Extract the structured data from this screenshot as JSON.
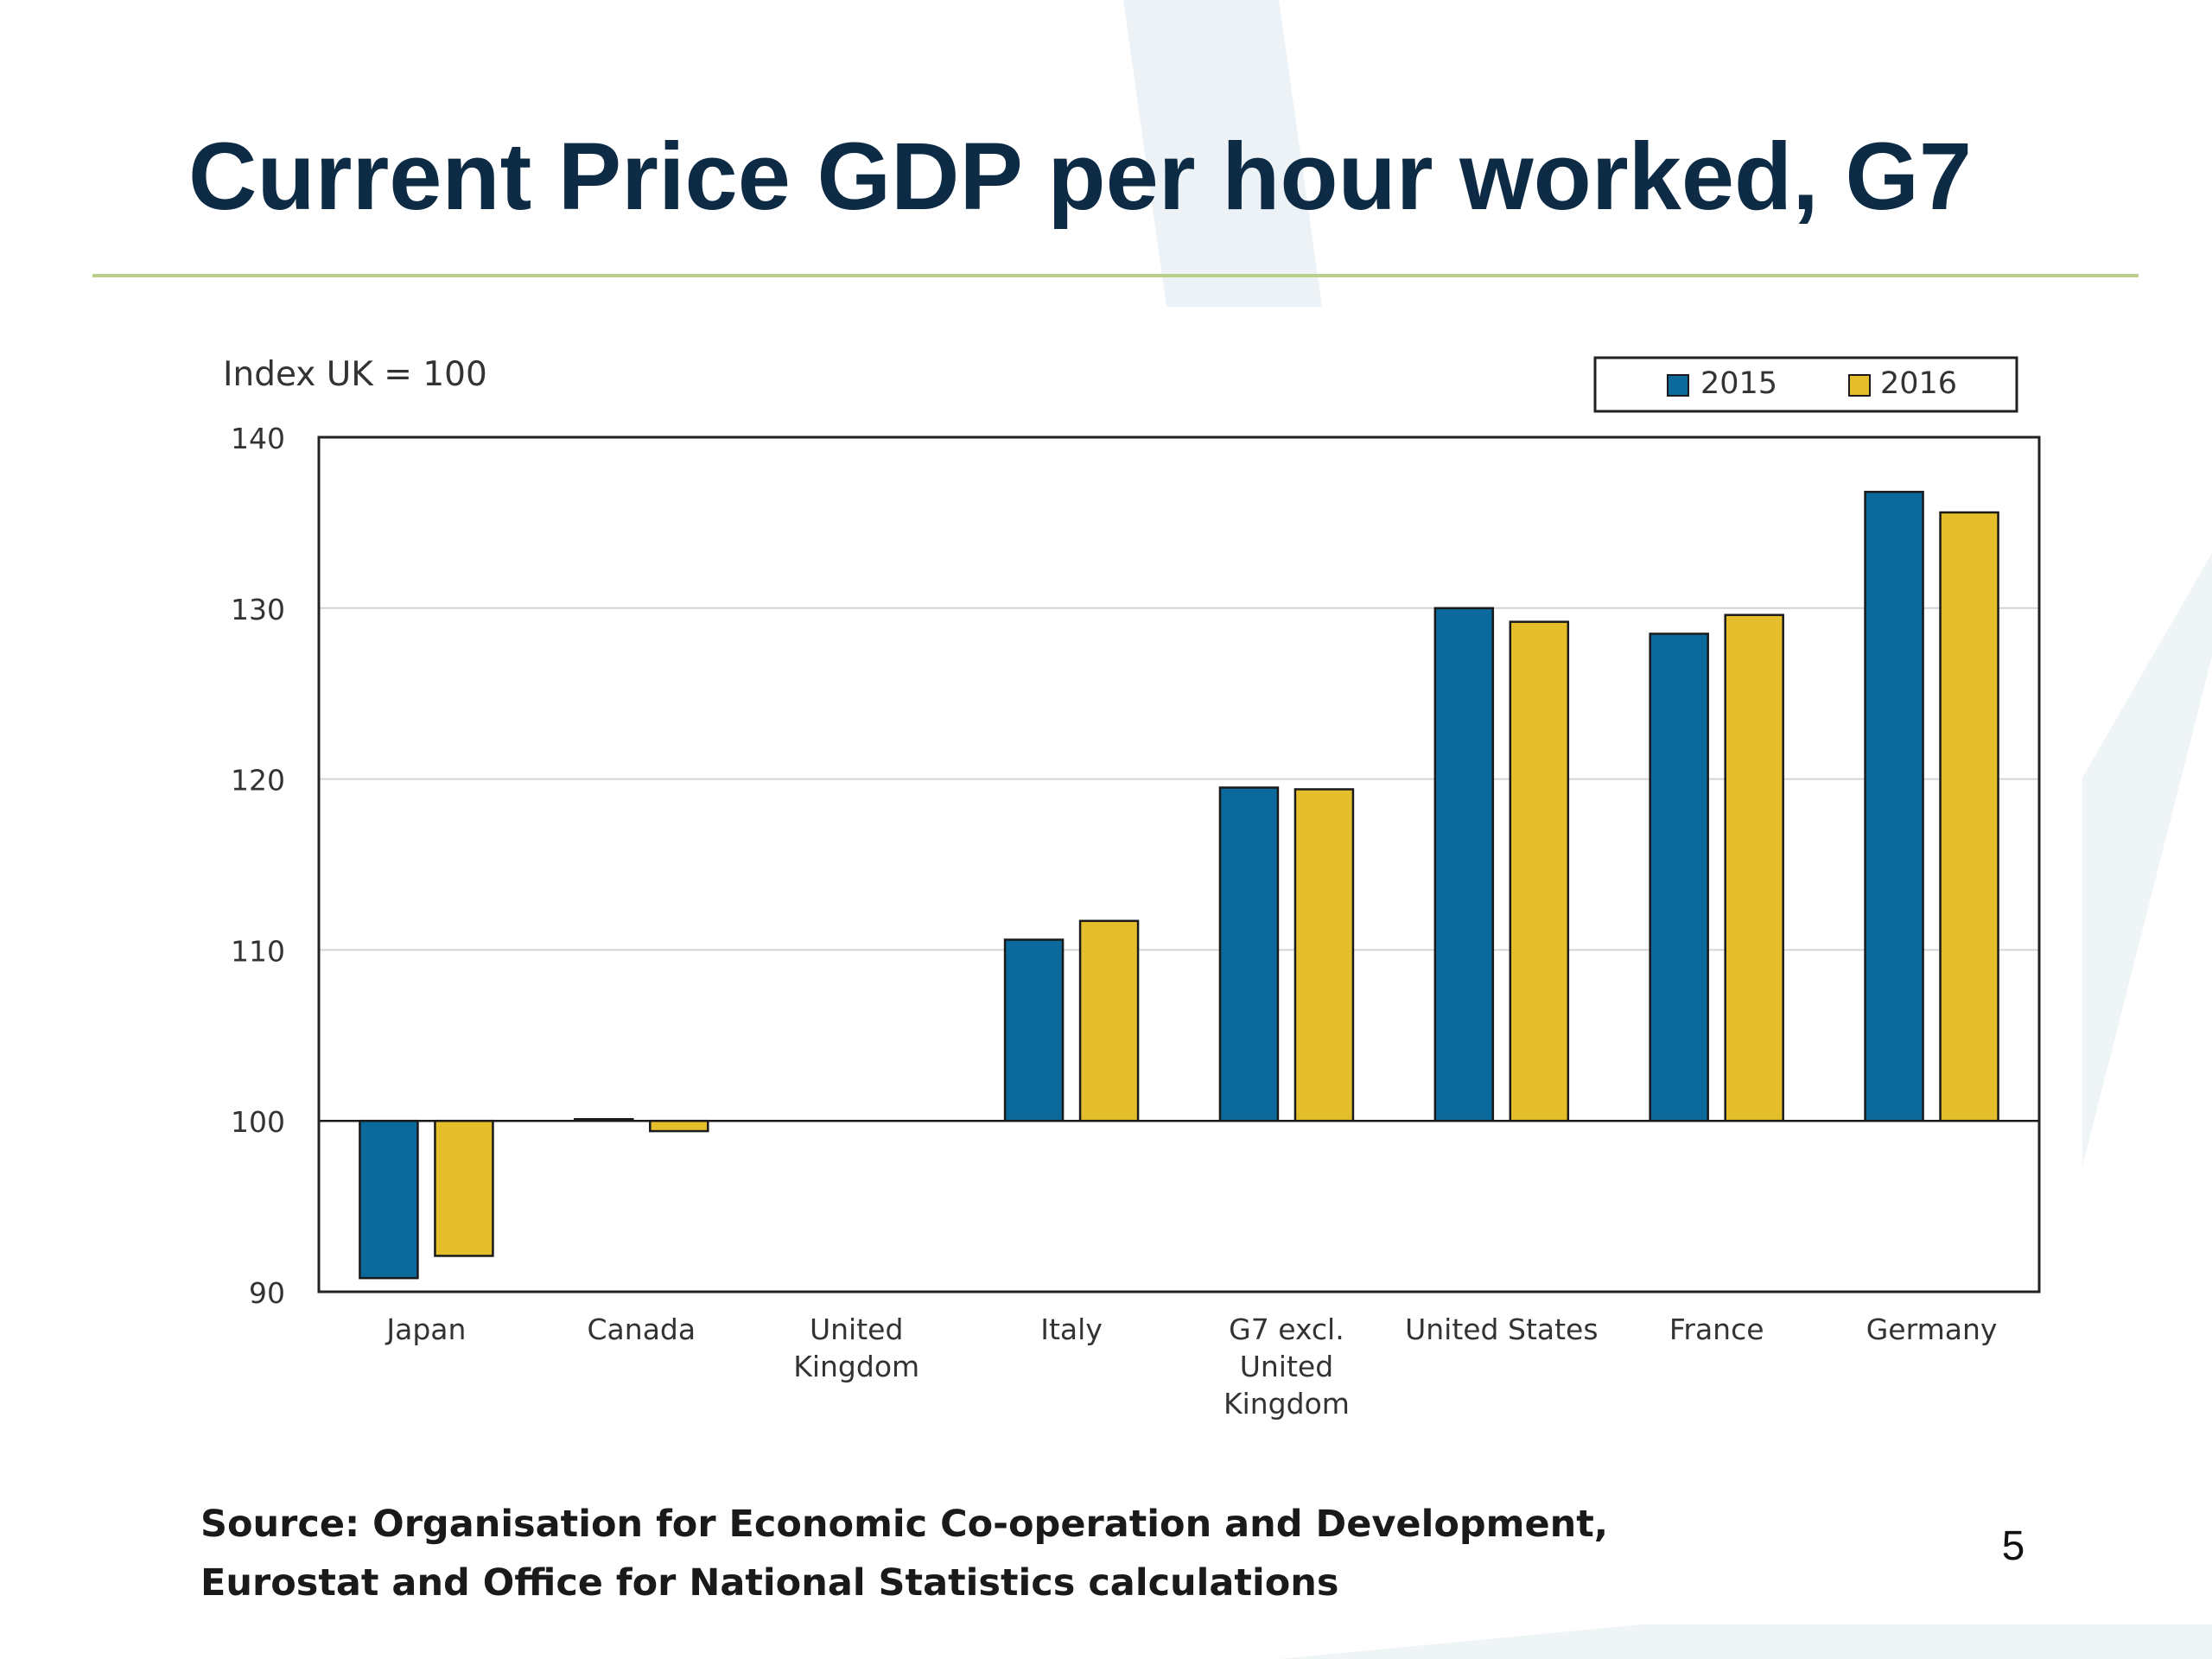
{
  "slide": {
    "title": "Current Price GDP per hour worked, G7",
    "source_lines": [
      "Source: Organisation for Economic Co-operation and Development,",
      "Eurostat and Office for National Statistics calculations"
    ],
    "page_number": "5"
  },
  "chart_data": {
    "type": "bar",
    "title": "",
    "ylabel": "Index UK = 100",
    "xlabel": "",
    "ylim": [
      90,
      140
    ],
    "yticks": [
      90,
      100,
      110,
      120,
      130,
      140
    ],
    "baseline": 100,
    "grid": true,
    "legend_position": "top-right",
    "categories": [
      [
        "Japan"
      ],
      [
        "Canada"
      ],
      [
        "United",
        "Kingdom"
      ],
      [
        "Italy"
      ],
      [
        "G7 excl.",
        "United",
        "Kingdom"
      ],
      [
        "United States"
      ],
      [
        "France"
      ],
      [
        "Germany"
      ]
    ],
    "series": [
      {
        "name": "2015",
        "color": "#0b6a9b",
        "values": [
          90.8,
          100.1,
          100,
          110.6,
          119.5,
          130.0,
          128.5,
          136.8
        ]
      },
      {
        "name": "2016",
        "color": "#e5bf2b",
        "values": [
          92.1,
          99.4,
          100,
          111.7,
          119.4,
          129.2,
          129.6,
          135.6
        ]
      }
    ]
  }
}
